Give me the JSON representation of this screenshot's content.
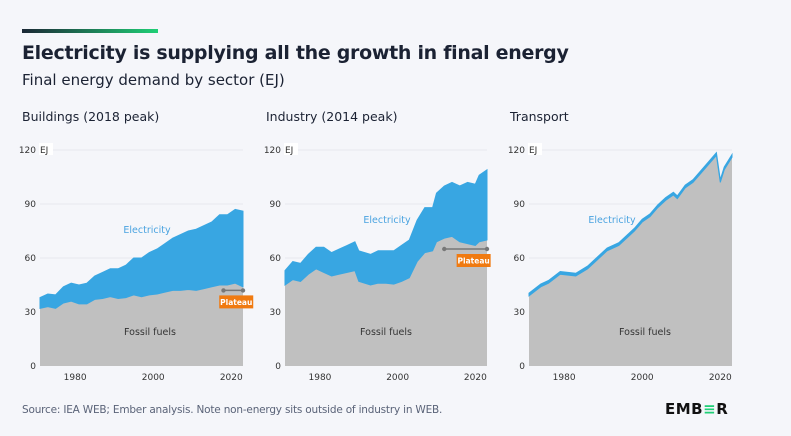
{
  "header": {
    "title": "Electricity is supplying all the growth in final energy",
    "subtitle": "Final energy demand by sector (EJ)"
  },
  "footer": {
    "source": "Source: IEA WEB; Ember analysis. Note non-energy sits outside of industry in WEB.",
    "logo": "EMBER"
  },
  "colors": {
    "fossil": "#c0c0c0",
    "electricity": "#38a6e2",
    "plateau": "#f07a10",
    "background": "#f5f6fa",
    "accent": "#1fcf76"
  },
  "chart_data": [
    {
      "type": "area",
      "stacked": true,
      "title": "Buildings (2018 peak)",
      "ylabel_unit": "EJ",
      "ylim": [
        0,
        120
      ],
      "yticks": [
        0,
        30,
        60,
        90,
        120
      ],
      "xlim": [
        1971,
        2023
      ],
      "xticks": [
        1980,
        2000,
        2020
      ],
      "grid": true,
      "x": [
        1971,
        1973,
        1975,
        1977,
        1979,
        1981,
        1983,
        1985,
        1987,
        1989,
        1991,
        1993,
        1995,
        1997,
        1999,
        2001,
        2003,
        2005,
        2007,
        2009,
        2011,
        2013,
        2015,
        2017,
        2019,
        2021,
        2023
      ],
      "series": [
        {
          "name": "Fossil fuels",
          "values": [
            32,
            33,
            32,
            35,
            36,
            34.5,
            34.5,
            37,
            37.5,
            38.5,
            37.5,
            38,
            39.5,
            38.5,
            39.5,
            40,
            41,
            42,
            42,
            42.5,
            42,
            43,
            44,
            45,
            45,
            46,
            44
          ]
        },
        {
          "name": "Electricity",
          "values": [
            6,
            7,
            7.5,
            9,
            10,
            10.5,
            11.5,
            13,
            14.5,
            15.5,
            16.5,
            18,
            20.5,
            21.5,
            23.5,
            25,
            27,
            29,
            31,
            32.5,
            34,
            35,
            36,
            39,
            39,
            41,
            42
          ]
        }
      ],
      "annotation": {
        "label": "Plateau",
        "x_range": [
          2018,
          2023
        ],
        "y": 42
      }
    },
    {
      "type": "area",
      "stacked": true,
      "title": "Industry (2014 peak)",
      "ylabel_unit": "EJ",
      "ylim": [
        0,
        120
      ],
      "yticks": [
        0,
        30,
        60,
        90,
        120
      ],
      "xlim": [
        1971,
        2023
      ],
      "xticks": [
        1980,
        2000,
        2020
      ],
      "grid": true,
      "x": [
        1971,
        1973,
        1975,
        1977,
        1979,
        1981,
        1983,
        1985,
        1987,
        1989,
        1990,
        1993,
        1995,
        1997,
        1999,
        2001,
        2003,
        2005,
        2007,
        2009,
        2010,
        2012,
        2014,
        2016,
        2018,
        2020,
        2021,
        2023
      ],
      "series": [
        {
          "name": "Fossil fuels",
          "values": [
            45,
            48,
            47,
            51,
            54,
            52,
            50,
            51,
            52,
            53,
            47,
            45,
            46,
            46,
            45.5,
            47,
            49,
            58,
            63,
            64,
            69,
            71,
            72,
            69,
            68,
            67,
            69,
            70
          ]
        },
        {
          "name": "Electricity",
          "values": [
            8,
            10,
            10,
            11,
            12,
            14,
            13,
            14,
            15,
            16,
            17,
            17,
            18,
            18,
            18.5,
            20,
            21,
            23,
            25,
            24,
            27,
            29,
            30,
            31,
            34,
            34,
            37,
            39
          ]
        }
      ],
      "annotation": {
        "label": "Plateau",
        "x_range": [
          2012,
          2023
        ],
        "y": 65
      }
    },
    {
      "type": "area",
      "stacked": true,
      "title": "Transport",
      "ylabel_unit": "EJ",
      "ylim": [
        0,
        120
      ],
      "yticks": [
        0,
        30,
        60,
        90,
        120
      ],
      "xlim": [
        1971,
        2023
      ],
      "xticks": [
        1980,
        2000,
        2020
      ],
      "grid": true,
      "x": [
        1971,
        1974,
        1976,
        1979,
        1983,
        1986,
        1989,
        1991,
        1994,
        1996,
        1998,
        2000,
        2002,
        2004,
        2006,
        2008,
        2009,
        2011,
        2013,
        2015,
        2017,
        2019,
        2020,
        2021,
        2023
      ],
      "series": [
        {
          "name": "Fossil fuels",
          "values": [
            39,
            44,
            46,
            51,
            50,
            54,
            60,
            64,
            67,
            71,
            75,
            80,
            83,
            88,
            92,
            95,
            93,
            99,
            102,
            107,
            112,
            117,
            102,
            109,
            116
          ]
        },
        {
          "name": "Electricity",
          "values": [
            1.5,
            1.5,
            1.5,
            1.5,
            1.5,
            1.5,
            1.5,
            1.5,
            1.5,
            1.5,
            1.5,
            1.5,
            1.5,
            1.5,
            1.5,
            1.5,
            1.5,
            1.5,
            1.5,
            1.5,
            1.5,
            1.5,
            1.5,
            1.5,
            1.5
          ]
        }
      ]
    }
  ]
}
